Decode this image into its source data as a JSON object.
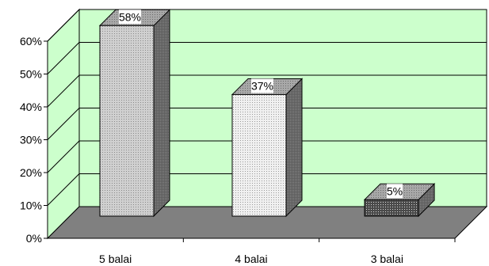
{
  "chart_data": {
    "type": "bar",
    "categories": [
      "5 balai",
      "4 balai",
      "3 balai"
    ],
    "values": [
      58,
      37,
      5
    ],
    "data_labels": [
      "58%",
      "37%",
      "5%"
    ],
    "y_ticks": [
      "0%",
      "10%",
      "20%",
      "30%",
      "40%",
      "50%",
      "60%"
    ],
    "ylim": [
      0,
      60
    ],
    "title": "",
    "xlabel": "",
    "ylabel": "",
    "grid": true,
    "legend": "none",
    "colors": {
      "back_wall": "#ccffcc",
      "floor": "#808080",
      "bar_front": [
        "#c8c8c8",
        "#ececec",
        "#5a5a5a"
      ],
      "bar_side": "#6e6e6e",
      "bar_top": "#9a9a9a"
    }
  }
}
